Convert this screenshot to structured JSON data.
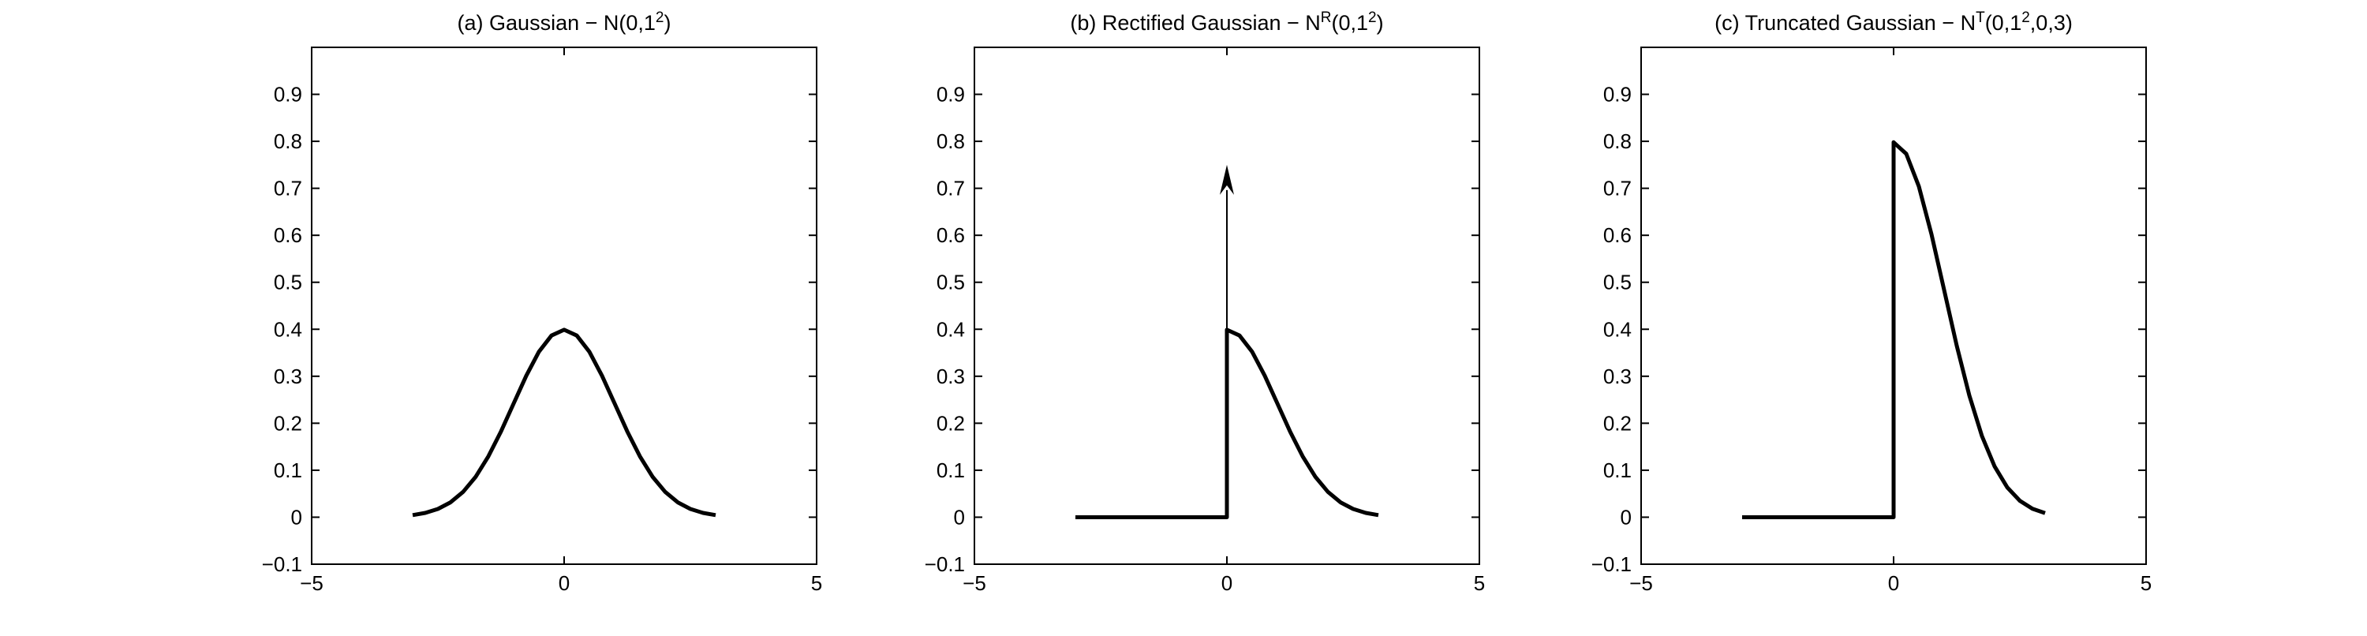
{
  "colors": {
    "background": "#ffffff",
    "line": "#000000"
  },
  "chart_data": [
    {
      "type": "line",
      "title": {
        "main": "(a) Gaussian − N(0,1",
        "sup": "2",
        "suffix": ")"
      },
      "xlabel": "",
      "ylabel": "",
      "xlim": [
        -5,
        5
      ],
      "ylim": [
        -0.1,
        1.0
      ],
      "xticks": [
        -5,
        0,
        5
      ],
      "xtick_labels": [
        "−5",
        "0",
        "5"
      ],
      "yticks": [
        -0.1,
        0,
        0.1,
        0.2,
        0.3,
        0.4,
        0.5,
        0.6,
        0.7,
        0.8,
        0.9
      ],
      "ytick_labels": [
        "−0.1",
        "0",
        "0.1",
        "0.2",
        "0.3",
        "0.4",
        "0.5",
        "0.6",
        "0.7",
        "0.8",
        "0.9"
      ],
      "grid": false,
      "series": [
        {
          "x": [
            -3,
            -2.75,
            -2.5,
            -2.25,
            -2,
            -1.75,
            -1.5,
            -1.25,
            -1,
            -0.75,
            -0.5,
            -0.25,
            0,
            0.25,
            0.5,
            0.75,
            1,
            1.25,
            1.5,
            1.75,
            2,
            2.25,
            2.5,
            2.75,
            3
          ],
          "y": [
            0.0044,
            0.0091,
            0.0175,
            0.0317,
            0.054,
            0.0863,
            0.1295,
            0.1826,
            0.242,
            0.3011,
            0.3521,
            0.3867,
            0.3989,
            0.3867,
            0.3521,
            0.3011,
            0.242,
            0.1826,
            0.1295,
            0.0863,
            0.054,
            0.0317,
            0.0175,
            0.0091,
            0.0044
          ]
        }
      ]
    },
    {
      "type": "line",
      "title": {
        "main": "(b) Rectified Gaussian − N",
        "sup": "R",
        "mid": "(0,1",
        "sup2": "2",
        "suffix": ")"
      },
      "xlabel": "",
      "ylabel": "",
      "xlim": [
        -5,
        5
      ],
      "ylim": [
        -0.1,
        1.0
      ],
      "xticks": [
        -5,
        0,
        5
      ],
      "xtick_labels": [
        "−5",
        "0",
        "5"
      ],
      "yticks": [
        -0.1,
        0,
        0.1,
        0.2,
        0.3,
        0.4,
        0.5,
        0.6,
        0.7,
        0.8,
        0.9
      ],
      "ytick_labels": [
        "−0.1",
        "0",
        "0.1",
        "0.2",
        "0.3",
        "0.4",
        "0.5",
        "0.6",
        "0.7",
        "0.8",
        "0.9"
      ],
      "grid": false,
      "series": [
        {
          "x": [
            -3,
            0,
            0,
            0,
            0.25,
            0.5,
            0.75,
            1,
            1.25,
            1.5,
            1.75,
            2,
            2.25,
            2.5,
            2.75,
            3
          ],
          "y": [
            0,
            0,
            0,
            0.3989,
            0.3867,
            0.3521,
            0.3011,
            0.242,
            0.1826,
            0.1295,
            0.0863,
            0.054,
            0.0317,
            0.0175,
            0.0091,
            0.0044
          ]
        }
      ],
      "impulse": {
        "x": 0,
        "from": 0.4,
        "to": 0.75
      }
    },
    {
      "type": "line",
      "title": {
        "main": "(c) Truncated Gaussian − N",
        "sup": "T",
        "mid": "(0,1",
        "sup2": "2",
        "suffix": ",0,3)"
      },
      "xlabel": "",
      "ylabel": "",
      "xlim": [
        -5,
        5
      ],
      "ylim": [
        -0.1,
        1.0
      ],
      "xticks": [
        -5,
        0,
        5
      ],
      "xtick_labels": [
        "−5",
        "0",
        "5"
      ],
      "yticks": [
        -0.1,
        0,
        0.1,
        0.2,
        0.3,
        0.4,
        0.5,
        0.6,
        0.7,
        0.8,
        0.9
      ],
      "ytick_labels": [
        "−0.1",
        "0",
        "0.1",
        "0.2",
        "0.3",
        "0.4",
        "0.5",
        "0.6",
        "0.7",
        "0.8",
        "0.9"
      ],
      "grid": false,
      "series": [
        {
          "x": [
            -3,
            0,
            0,
            0,
            0.25,
            0.5,
            0.75,
            1,
            1.25,
            1.5,
            1.75,
            2,
            2.25,
            2.5,
            2.75,
            3
          ],
          "y": [
            0,
            0,
            0,
            0.7979,
            0.7734,
            0.7041,
            0.6023,
            0.4839,
            0.3652,
            0.259,
            0.1726,
            0.108,
            0.0635,
            0.035,
            0.0181,
            0.0089
          ]
        }
      ]
    }
  ]
}
